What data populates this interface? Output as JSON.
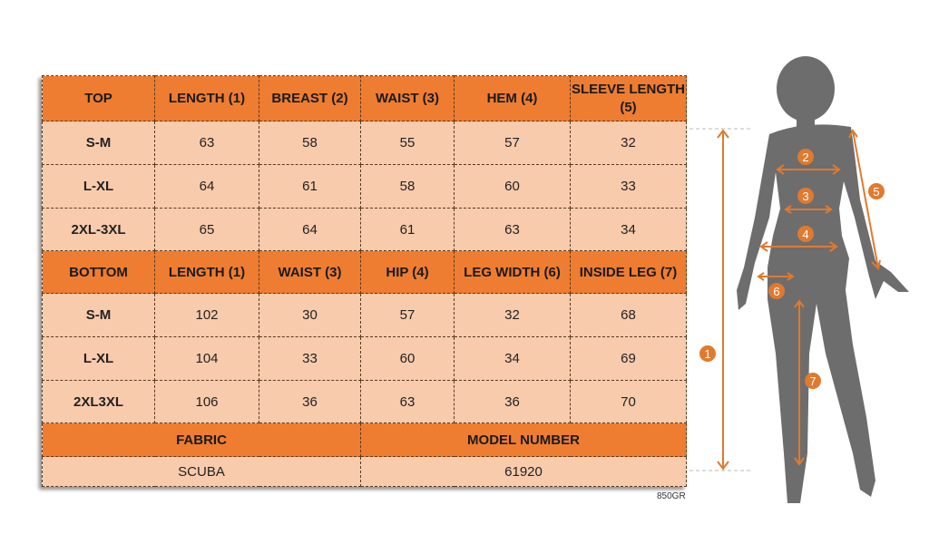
{
  "top_section": {
    "headers": [
      "TOP",
      "LENGTH (1)",
      "BREAST (2)",
      "WAIST (3)",
      "HEM (4)",
      "SLEEVE LENGTH (5)"
    ],
    "rows": [
      [
        "S-M",
        "63",
        "58",
        "55",
        "57",
        "32"
      ],
      [
        "L-XL",
        "64",
        "61",
        "58",
        "60",
        "33"
      ],
      [
        "2XL-3XL",
        "65",
        "64",
        "61",
        "63",
        "34"
      ]
    ]
  },
  "bottom_section": {
    "headers": [
      "BOTTOM",
      "LENGTH (1)",
      "WAIST (3)",
      "HIP (4)",
      "LEG WIDTH (6)",
      "INSIDE LEG (7)"
    ],
    "rows": [
      [
        "S-M",
        "102",
        "30",
        "57",
        "32",
        "68"
      ],
      [
        "L-XL",
        "104",
        "33",
        "60",
        "34",
        "69"
      ],
      [
        "2XL3XL",
        "106",
        "36",
        "63",
        "36",
        "70"
      ]
    ]
  },
  "info": {
    "fabric_label": "FABRIC",
    "fabric_value": "SCUBA",
    "model_label": "MODEL NUMBER",
    "model_value": "61920"
  },
  "code": "850GR",
  "figure": {
    "markers": [
      "1",
      "2",
      "3",
      "4",
      "5",
      "6",
      "7"
    ],
    "silhouette_color": "#6d6d6d",
    "accent_color": "#e07a2f"
  },
  "colors": {
    "header": "#ee7d31",
    "cell": "#f8cbad"
  }
}
